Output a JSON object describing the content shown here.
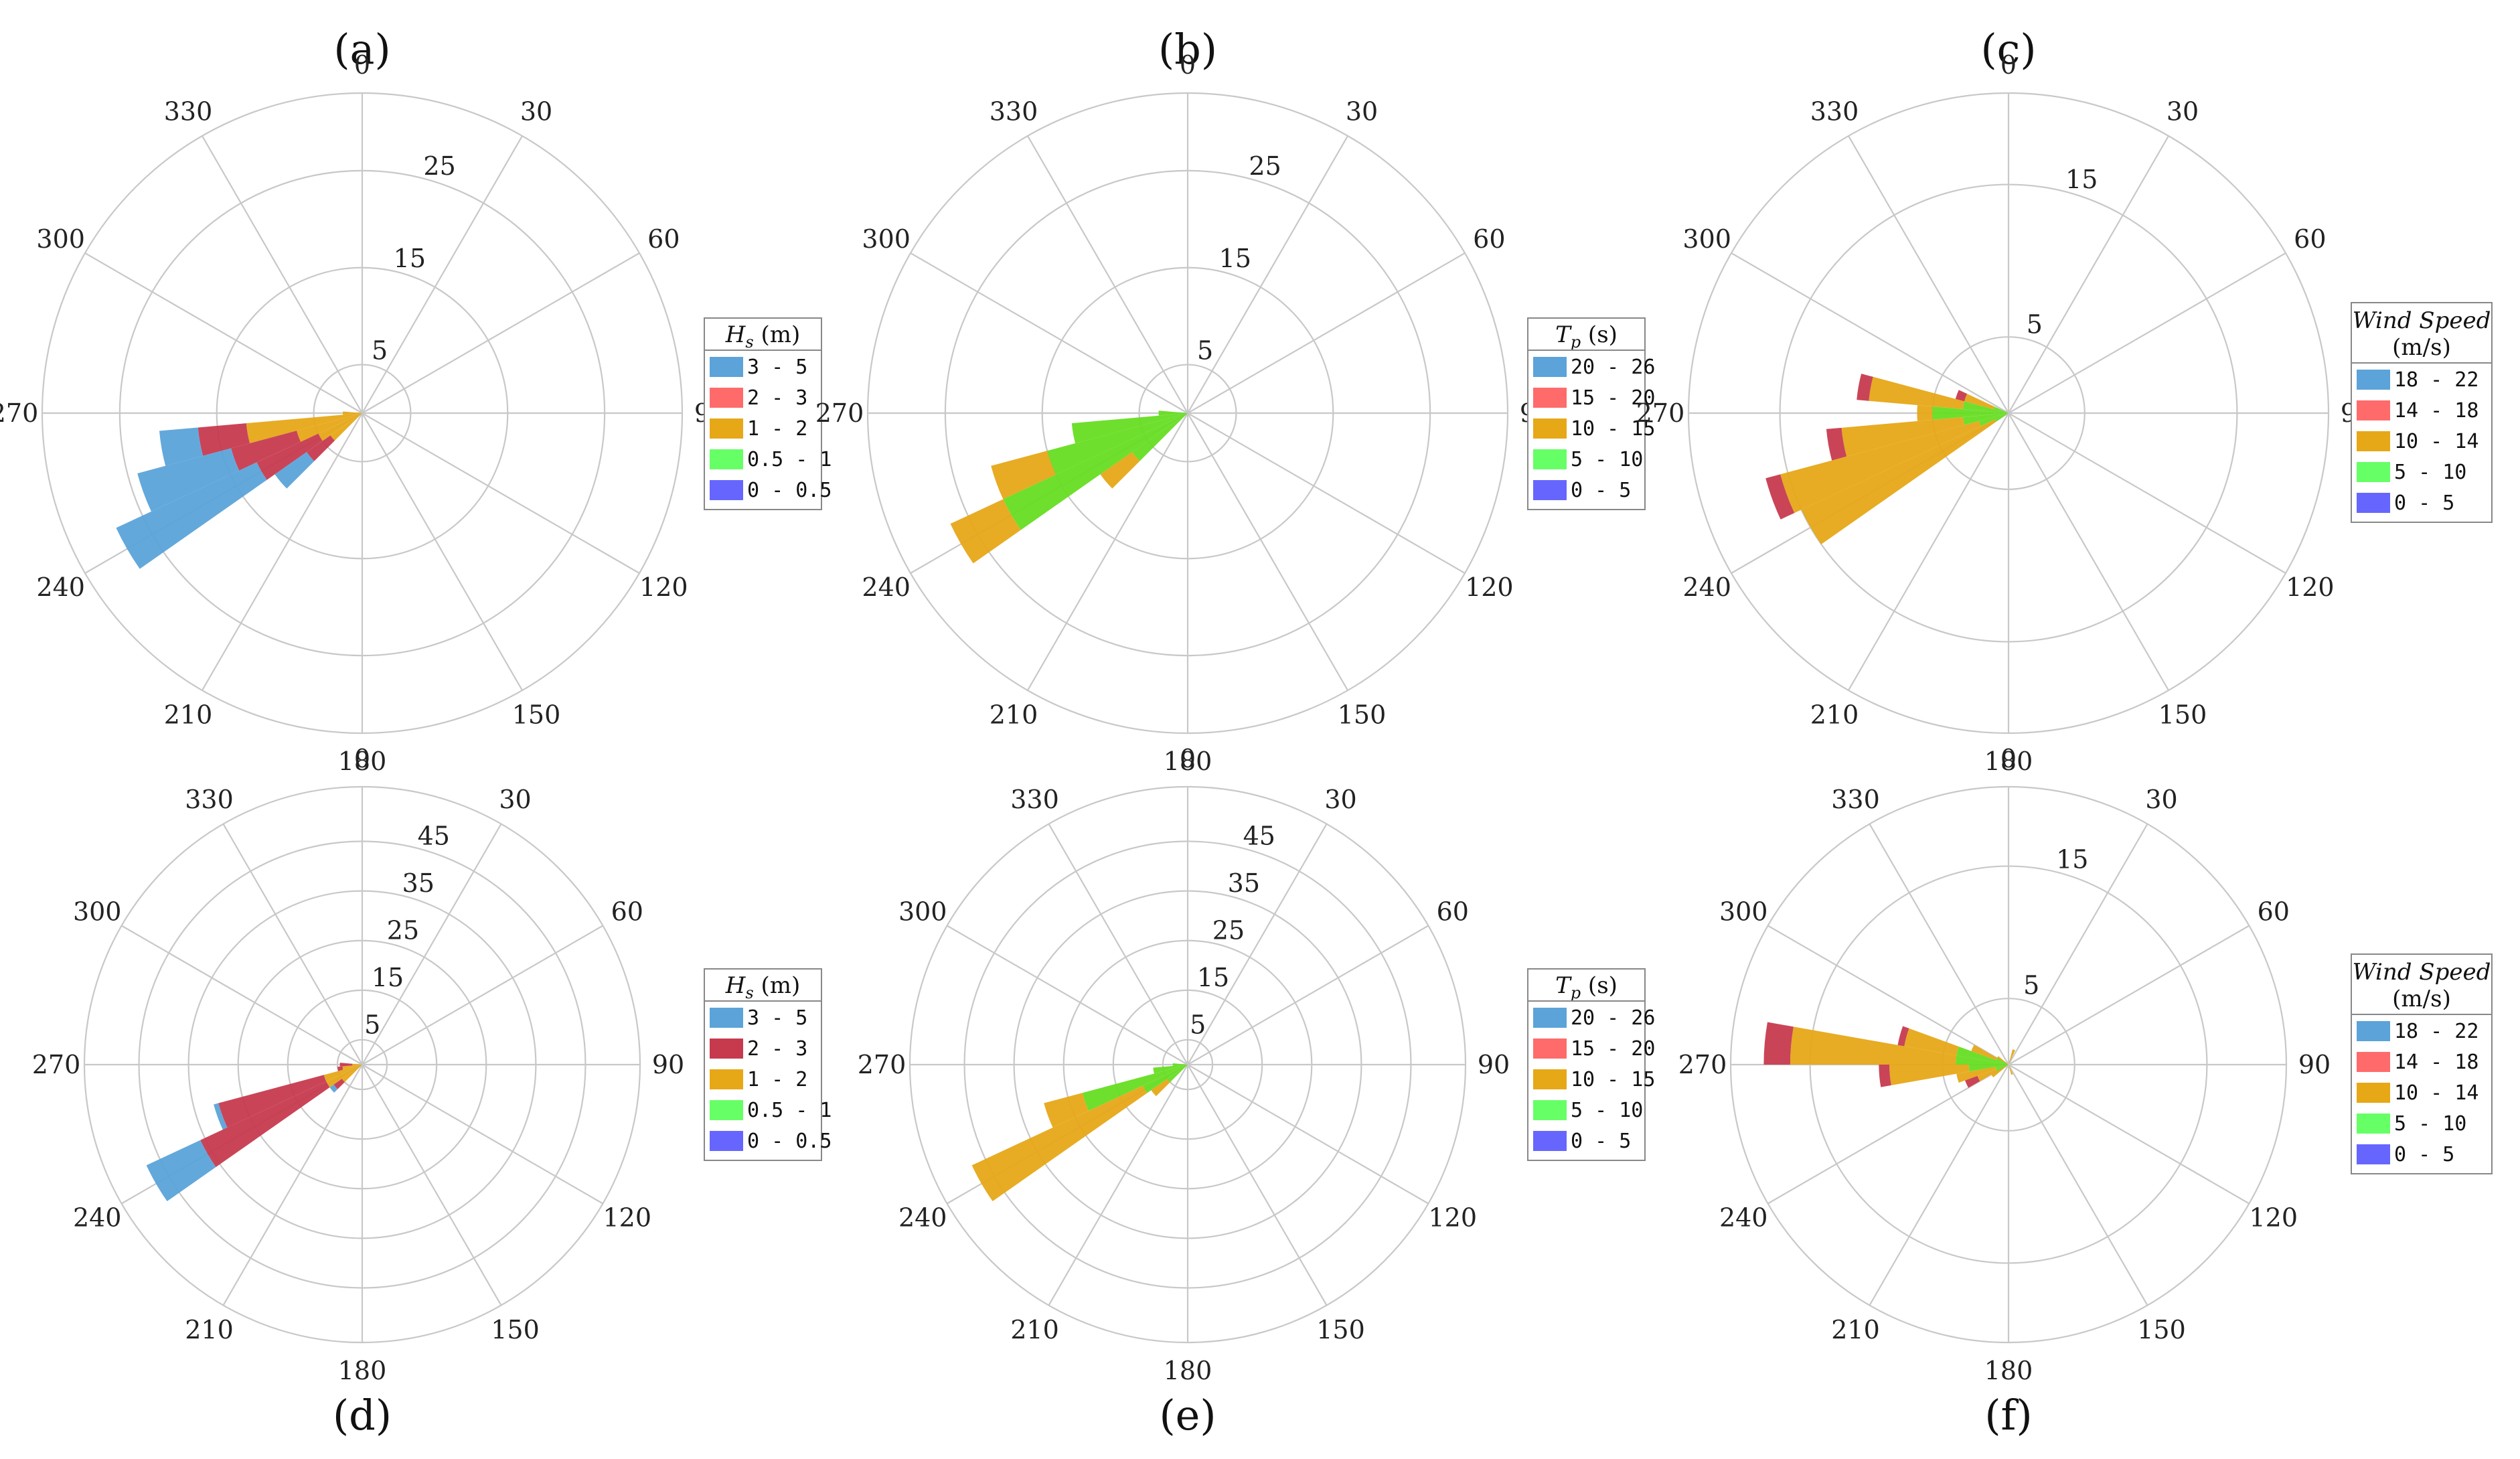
{
  "chart_data": [
    {
      "panel": "(a)",
      "type": "polar-bar",
      "title": "(a)",
      "angle_ticks": [
        "0",
        "30",
        "60",
        "90",
        "120",
        "150",
        "180",
        "210",
        "240",
        "270",
        "300",
        "330"
      ],
      "radial_ticks": [
        5,
        15,
        25
      ],
      "rmax": 33,
      "legend": {
        "title": "Hs",
        "unit": "(m)",
        "items": [
          "3 - 5",
          "2 - 3",
          "1 - 2",
          "0.5 - 1",
          "0 - 0.5"
        ],
        "colors": [
          "#5ba3d9",
          "#ff6b6b",
          "#e6a817",
          "#66ff66",
          "#6666ff"
        ]
      },
      "bar_colors": [
        "#5ba3d9",
        "#c73a4e",
        "#e6a817",
        "#66dd22",
        "#6666ff"
      ],
      "sectors": [
        {
          "dir": 260,
          "stack": [
            {
              "cat": 2,
              "end": 12
            },
            {
              "cat": 1,
              "end": 17
            },
            {
              "cat": 0,
              "end": 21
            }
          ]
        },
        {
          "dir": 250,
          "stack": [
            {
              "cat": 2,
              "end": 7
            },
            {
              "cat": 1,
              "end": 14
            },
            {
              "cat": 0,
              "end": 24
            }
          ]
        },
        {
          "dir": 240,
          "stack": [
            {
              "cat": 2,
              "end": 5
            },
            {
              "cat": 1,
              "end": 12
            },
            {
              "cat": 0,
              "end": 28
            }
          ]
        },
        {
          "dir": 230,
          "stack": [
            {
              "cat": 2,
              "end": 4
            },
            {
              "cat": 1,
              "end": 7
            },
            {
              "cat": 0,
              "end": 11
            }
          ]
        },
        {
          "dir": 270,
          "stack": [
            {
              "cat": 2,
              "end": 2
            }
          ]
        }
      ]
    },
    {
      "panel": "(b)",
      "type": "polar-bar",
      "title": "(b)",
      "angle_ticks": [
        "0",
        "30",
        "60",
        "90",
        "120",
        "150",
        "180",
        "210",
        "240",
        "270",
        "300",
        "330"
      ],
      "radial_ticks": [
        5,
        15,
        25
      ],
      "rmax": 33,
      "legend": {
        "title": "Tp",
        "unit": "(s)",
        "items": [
          "20 - 26",
          "15 - 20",
          "10 - 15",
          "5 - 10",
          "0 - 5"
        ],
        "colors": [
          "#5ba3d9",
          "#ff6b6b",
          "#e6a817",
          "#66ff66",
          "#6666ff"
        ]
      },
      "bar_colors": [
        "#5ba3d9",
        "#c73a4e",
        "#e6a817",
        "#66dd22",
        "#6666ff"
      ],
      "sectors": [
        {
          "dir": 260,
          "stack": [
            {
              "cat": 3,
              "end": 12
            }
          ]
        },
        {
          "dir": 250,
          "stack": [
            {
              "cat": 3,
              "end": 15
            },
            {
              "cat": 2,
              "end": 21
            }
          ]
        },
        {
          "dir": 240,
          "stack": [
            {
              "cat": 3,
              "end": 21
            },
            {
              "cat": 2,
              "end": 27
            }
          ]
        },
        {
          "dir": 230,
          "stack": [
            {
              "cat": 3,
              "end": 7
            },
            {
              "cat": 2,
              "end": 11
            }
          ]
        },
        {
          "dir": 270,
          "stack": [
            {
              "cat": 3,
              "end": 3
            }
          ]
        }
      ]
    },
    {
      "panel": "(c)",
      "type": "polar-bar",
      "title": "(c)",
      "angle_ticks": [
        "0",
        "30",
        "60",
        "90",
        "120",
        "150",
        "180",
        "210",
        "240",
        "270",
        "300",
        "330"
      ],
      "radial_ticks": [
        5,
        15
      ],
      "rmax": 21,
      "legend": {
        "title": "Wind Speed",
        "unit": "(m/s)",
        "items": [
          "18 - 22",
          "14 - 18",
          "10 - 14",
          "5 - 10",
          "0 - 5"
        ],
        "colors": [
          "#5ba3d9",
          "#ff6b6b",
          "#e6a817",
          "#66ff66",
          "#6666ff"
        ]
      },
      "bar_colors": [
        "#5ba3d9",
        "#c73a4e",
        "#e6a817",
        "#66dd22",
        "#6666ff"
      ],
      "sectors": [
        {
          "dir": 280,
          "stack": [
            {
              "cat": 3,
              "end": 3
            },
            {
              "cat": 2,
              "end": 9.2
            },
            {
              "cat": 1,
              "end": 10
            }
          ]
        },
        {
          "dir": 290,
          "stack": [
            {
              "cat": 3,
              "end": 1
            },
            {
              "cat": 2,
              "end": 3
            },
            {
              "cat": 1,
              "end": 3.6
            }
          ]
        },
        {
          "dir": 270,
          "stack": [
            {
              "cat": 3,
              "end": 5
            },
            {
              "cat": 2,
              "end": 6
            }
          ]
        },
        {
          "dir": 260,
          "stack": [
            {
              "cat": 3,
              "end": 3
            },
            {
              "cat": 2,
              "end": 11
            },
            {
              "cat": 1,
              "end": 12
            }
          ]
        },
        {
          "dir": 250,
          "stack": [
            {
              "cat": 3,
              "end": 2
            },
            {
              "cat": 2,
              "end": 15.5
            },
            {
              "cat": 1,
              "end": 16.5
            }
          ]
        },
        {
          "dir": 240,
          "stack": [
            {
              "cat": 3,
              "end": 1
            },
            {
              "cat": 2,
              "end": 15
            }
          ]
        }
      ]
    },
    {
      "panel": "(d)",
      "type": "polar-bar",
      "title": "(d)",
      "angle_ticks": [
        "0",
        "30",
        "60",
        "90",
        "120",
        "150",
        "180",
        "210",
        "240",
        "270",
        "300",
        "330"
      ],
      "radial_ticks": [
        5,
        15,
        25,
        35,
        45
      ],
      "rmax": 56,
      "legend": {
        "title": "Hs",
        "unit": "(m)",
        "items": [
          "3 - 5",
          "2 - 3",
          "1 - 2",
          "0.5 - 1",
          "0 - 0.5"
        ],
        "colors": [
          "#5ba3d9",
          "#c73a4e",
          "#e6a817",
          "#66ff66",
          "#6666ff"
        ]
      },
      "bar_colors": [
        "#5ba3d9",
        "#c73a4e",
        "#e6a817",
        "#66dd22",
        "#6666ff"
      ],
      "sectors": [
        {
          "dir": 250,
          "stack": [
            {
              "cat": 2,
              "end": 8
            },
            {
              "cat": 1,
              "end": 30
            },
            {
              "cat": 0,
              "end": 31
            }
          ]
        },
        {
          "dir": 240,
          "stack": [
            {
              "cat": 2,
              "end": 8
            },
            {
              "cat": 1,
              "end": 36
            },
            {
              "cat": 0,
              "end": 48
            }
          ]
        },
        {
          "dir": 230,
          "stack": [
            {
              "cat": 2,
              "end": 5
            },
            {
              "cat": 1,
              "end": 7
            },
            {
              "cat": 0,
              "end": 8
            }
          ]
        },
        {
          "dir": 260,
          "stack": [
            {
              "cat": 2,
              "end": 4
            },
            {
              "cat": 1,
              "end": 5
            }
          ]
        },
        {
          "dir": 270,
          "stack": [
            {
              "cat": 2,
              "end": 2
            },
            {
              "cat": 1,
              "end": 4.5
            }
          ]
        }
      ]
    },
    {
      "panel": "(e)",
      "type": "polar-bar",
      "title": "(e)",
      "angle_ticks": [
        "0",
        "30",
        "60",
        "90",
        "120",
        "150",
        "180",
        "210",
        "240",
        "270",
        "300",
        "330"
      ],
      "radial_ticks": [
        5,
        15,
        25,
        35,
        45
      ],
      "rmax": 56,
      "legend": {
        "title": "Tp",
        "unit": "(s)",
        "items": [
          "20 - 26",
          "15 - 20",
          "10 - 15",
          "5 - 10",
          "0 - 5"
        ],
        "colors": [
          "#5ba3d9",
          "#ff6b6b",
          "#e6a817",
          "#66ff66",
          "#6666ff"
        ]
      },
      "bar_colors": [
        "#5ba3d9",
        "#c73a4e",
        "#e6a817",
        "#66dd22",
        "#6666ff"
      ],
      "sectors": [
        {
          "dir": 250,
          "stack": [
            {
              "cat": 3,
              "end": 22
            },
            {
              "cat": 2,
              "end": 30
            }
          ]
        },
        {
          "dir": 240,
          "stack": [
            {
              "cat": 3,
              "end": 10
            },
            {
              "cat": 2,
              "end": 48
            }
          ]
        },
        {
          "dir": 230,
          "stack": [
            {
              "cat": 3,
              "end": 5
            },
            {
              "cat": 2,
              "end": 9
            }
          ]
        },
        {
          "dir": 260,
          "stack": [
            {
              "cat": 3,
              "end": 7
            }
          ]
        },
        {
          "dir": 270,
          "stack": [
            {
              "cat": 3,
              "end": 3
            }
          ]
        }
      ]
    },
    {
      "panel": "(f)",
      "type": "polar-bar",
      "title": "(f)",
      "angle_ticks": [
        "0",
        "30",
        "60",
        "90",
        "120",
        "150",
        "180",
        "210",
        "240",
        "270",
        "300",
        "330"
      ],
      "radial_ticks": [
        5,
        15
      ],
      "rmax": 21,
      "legend": {
        "title": "Wind Speed",
        "unit": "(m/s)",
        "items": [
          "18 - 22",
          "14 - 18",
          "10 - 14",
          "5 - 10",
          "0 - 5"
        ],
        "colors": [
          "#5ba3d9",
          "#ff6b6b",
          "#e6a817",
          "#66ff66",
          "#6666ff"
        ]
      },
      "bar_colors": [
        "#5ba3d9",
        "#c73a4e",
        "#e6a817",
        "#66dd22",
        "#6666ff"
      ],
      "sectors": [
        {
          "dir": 275,
          "stack": [
            {
              "cat": 3,
              "end": 4
            },
            {
              "cat": 2,
              "end": 16.5
            },
            {
              "cat": 1,
              "end": 18.5
            }
          ]
        },
        {
          "dir": 285,
          "stack": [
            {
              "cat": 3,
              "end": 4
            },
            {
              "cat": 2,
              "end": 8
            },
            {
              "cat": 1,
              "end": 8.5
            }
          ]
        },
        {
          "dir": 295,
          "stack": [
            {
              "cat": 3,
              "end": 1
            },
            {
              "cat": 2,
              "end": 3
            }
          ]
        },
        {
          "dir": 265,
          "stack": [
            {
              "cat": 3,
              "end": 3
            },
            {
              "cat": 2,
              "end": 9
            },
            {
              "cat": 1,
              "end": 9.8
            }
          ]
        },
        {
          "dir": 255,
          "stack": [
            {
              "cat": 3,
              "end": 1
            },
            {
              "cat": 2,
              "end": 4
            }
          ]
        },
        {
          "dir": 245,
          "stack": [
            {
              "cat": 3,
              "end": 1
            },
            {
              "cat": 2,
              "end": 2.5
            },
            {
              "cat": 1,
              "end": 3.5
            }
          ]
        },
        {
          "dir": 235,
          "stack": [
            {
              "cat": 2,
              "end": 1.5
            }
          ]
        },
        {
          "dir": 305,
          "stack": [
            {
              "cat": 2,
              "end": 1
            }
          ]
        },
        {
          "dir": 20,
          "stack": [
            {
              "cat": 2,
              "end": 1.2
            }
          ]
        },
        {
          "dir": 160,
          "stack": [
            {
              "cat": 2,
              "end": 0.8
            }
          ]
        }
      ]
    }
  ]
}
